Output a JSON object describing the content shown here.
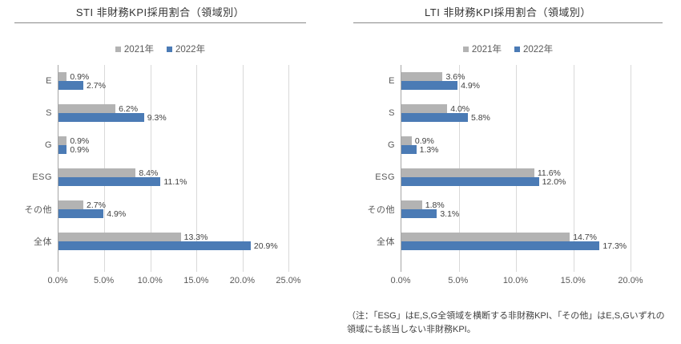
{
  "colors": {
    "series_2021": "#b3b3b3",
    "series_2022": "#4b7bb5",
    "gridline": "#d9d9d9",
    "axis_line": "#a6a6a6",
    "text": "#404040"
  },
  "note": "（注：「ESG」はE,S,G全領域を横断する非財務KPI、「その他」はE,S,Gいずれの領域にも該当しない非財務KPI。",
  "chart_data": [
    {
      "type": "bar",
      "orientation": "horizontal",
      "title": "STI 非財務KPI採用割合（領域別）",
      "categories": [
        "E",
        "S",
        "G",
        "ESG",
        "その他",
        "全体"
      ],
      "series": [
        {
          "name": "2021年",
          "color": "#b3b3b3",
          "values": [
            0.9,
            6.2,
            0.9,
            8.4,
            2.7,
            13.3
          ]
        },
        {
          "name": "2022年",
          "color": "#4b7bb5",
          "values": [
            2.7,
            9.3,
            0.9,
            11.1,
            4.9,
            20.9
          ]
        }
      ],
      "value_labels": [
        [
          "0.9%",
          "6.2%",
          "0.9%",
          "8.4%",
          "2.7%",
          "13.3%"
        ],
        [
          "2.7%",
          "9.3%",
          "0.9%",
          "11.1%",
          "4.9%",
          "20.9%"
        ]
      ],
      "x_tick_labels": [
        "0.0%",
        "5.0%",
        "10.0%",
        "15.0%",
        "20.0%",
        "25.0%"
      ],
      "xlim": [
        0,
        25
      ],
      "xmax": 25,
      "grid": true,
      "legend_position": "top"
    },
    {
      "type": "bar",
      "orientation": "horizontal",
      "title": "LTI 非財務KPI採用割合（領域別）",
      "categories": [
        "E",
        "S",
        "G",
        "ESG",
        "その他",
        "全体"
      ],
      "series": [
        {
          "name": "2021年",
          "color": "#b3b3b3",
          "values": [
            3.6,
            4.0,
            0.9,
            11.6,
            1.8,
            14.7
          ]
        },
        {
          "name": "2022年",
          "color": "#4b7bb5",
          "values": [
            4.9,
            5.8,
            1.3,
            12.0,
            3.1,
            17.3
          ]
        }
      ],
      "value_labels": [
        [
          "3.6%",
          "4.0%",
          "0.9%",
          "11.6%",
          "1.8%",
          "14.7%"
        ],
        [
          "4.9%",
          "5.8%",
          "1.3%",
          "12.0%",
          "3.1%",
          "17.3%"
        ]
      ],
      "x_tick_labels": [
        "0.0%",
        "5.0%",
        "10.0%",
        "15.0%",
        "20.0%"
      ],
      "xlim": [
        0,
        20
      ],
      "xmax": 20,
      "grid": true,
      "legend_position": "top"
    }
  ]
}
